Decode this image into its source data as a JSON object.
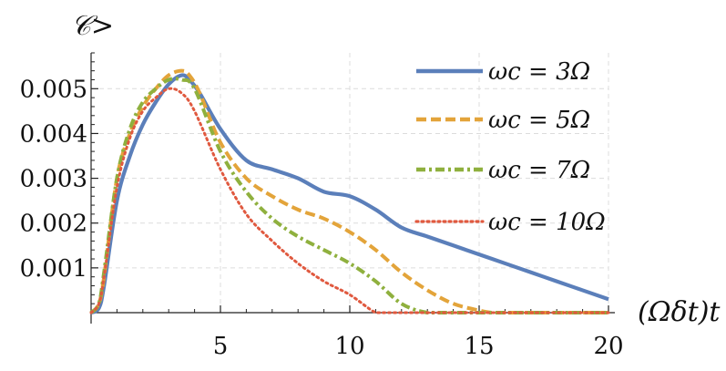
{
  "chart_data": {
    "type": "line",
    "ylabel": "𝒞>",
    "xlabel": "(Ωδt)t",
    "xlim": [
      0,
      20
    ],
    "ylim": [
      0,
      0.0058
    ],
    "x_ticks": [
      5,
      10,
      15,
      20
    ],
    "y_ticks": [
      0.001,
      0.002,
      0.003,
      0.004,
      0.005
    ],
    "x_tick_labels": [
      "5",
      "10",
      "15",
      "20"
    ],
    "y_tick_labels": [
      "0.001",
      "0.002",
      "0.003",
      "0.004",
      "0.005"
    ],
    "grid": true,
    "legend_position": "top-right",
    "series": [
      {
        "name": "ωc = 3Ω",
        "color": "#5b7fba",
        "dash": "solid",
        "x": [
          0,
          0.3,
          0.5,
          1,
          1.5,
          2,
          2.5,
          3,
          3.5,
          3.8,
          4.2,
          5,
          6,
          7,
          8,
          9,
          10,
          11,
          12,
          13,
          14,
          15,
          16,
          17,
          18,
          19,
          20
        ],
        "y": [
          0,
          0.0001,
          0.0006,
          0.0025,
          0.0035,
          0.0042,
          0.0047,
          0.0051,
          0.0053,
          0.0052,
          0.0049,
          0.0041,
          0.0034,
          0.0032,
          0.003,
          0.0027,
          0.0026,
          0.0023,
          0.0019,
          0.0017,
          0.0015,
          0.0013,
          0.0011,
          0.0009,
          0.0007,
          0.0005,
          0.0003
        ]
      },
      {
        "name": "ωc = 5Ω",
        "color": "#e3a43a",
        "dash": "dashed",
        "x": [
          0,
          0.3,
          0.5,
          1,
          1.5,
          2,
          2.5,
          3,
          3.5,
          3.8,
          4.2,
          5,
          6,
          7,
          8,
          9,
          10,
          11,
          12,
          13,
          14,
          15,
          15.5,
          16,
          17,
          18,
          19,
          20
        ],
        "y": [
          0,
          0.0002,
          0.0008,
          0.003,
          0.004,
          0.0046,
          0.005,
          0.0053,
          0.0054,
          0.0053,
          0.0049,
          0.0038,
          0.003,
          0.0026,
          0.0023,
          0.0021,
          0.0018,
          0.0014,
          0.0009,
          0.0005,
          0.0002,
          5e-05,
          0,
          0,
          0,
          0,
          0,
          0
        ]
      },
      {
        "name": "ωc = 7Ω",
        "color": "#8fb03e",
        "dash": "dashdot",
        "x": [
          0,
          0.3,
          0.5,
          1,
          1.5,
          2,
          2.5,
          3,
          3.5,
          4,
          5,
          6,
          7,
          8,
          9,
          10,
          11,
          12,
          13,
          14,
          16,
          18,
          20
        ],
        "y": [
          0,
          0.0002,
          0.0009,
          0.003,
          0.0041,
          0.0047,
          0.005,
          0.0052,
          0.0052,
          0.005,
          0.0036,
          0.0027,
          0.0021,
          0.0017,
          0.0014,
          0.0011,
          0.0007,
          0.0002,
          0,
          0,
          0,
          0,
          0
        ]
      },
      {
        "name": "ωc = 10Ω",
        "color": "#e0593f",
        "dash": "dotted",
        "x": [
          0,
          0.3,
          0.5,
          1,
          1.5,
          2,
          2.5,
          3,
          3.5,
          4,
          5,
          6,
          7,
          8,
          9,
          10,
          11,
          11.5,
          13,
          16,
          20
        ],
        "y": [
          0,
          0.0002,
          0.0008,
          0.0028,
          0.0039,
          0.0045,
          0.0048,
          0.005,
          0.0049,
          0.0045,
          0.0032,
          0.0022,
          0.0016,
          0.0011,
          0.0007,
          0.0004,
          0,
          0,
          0,
          0,
          0
        ]
      }
    ]
  }
}
